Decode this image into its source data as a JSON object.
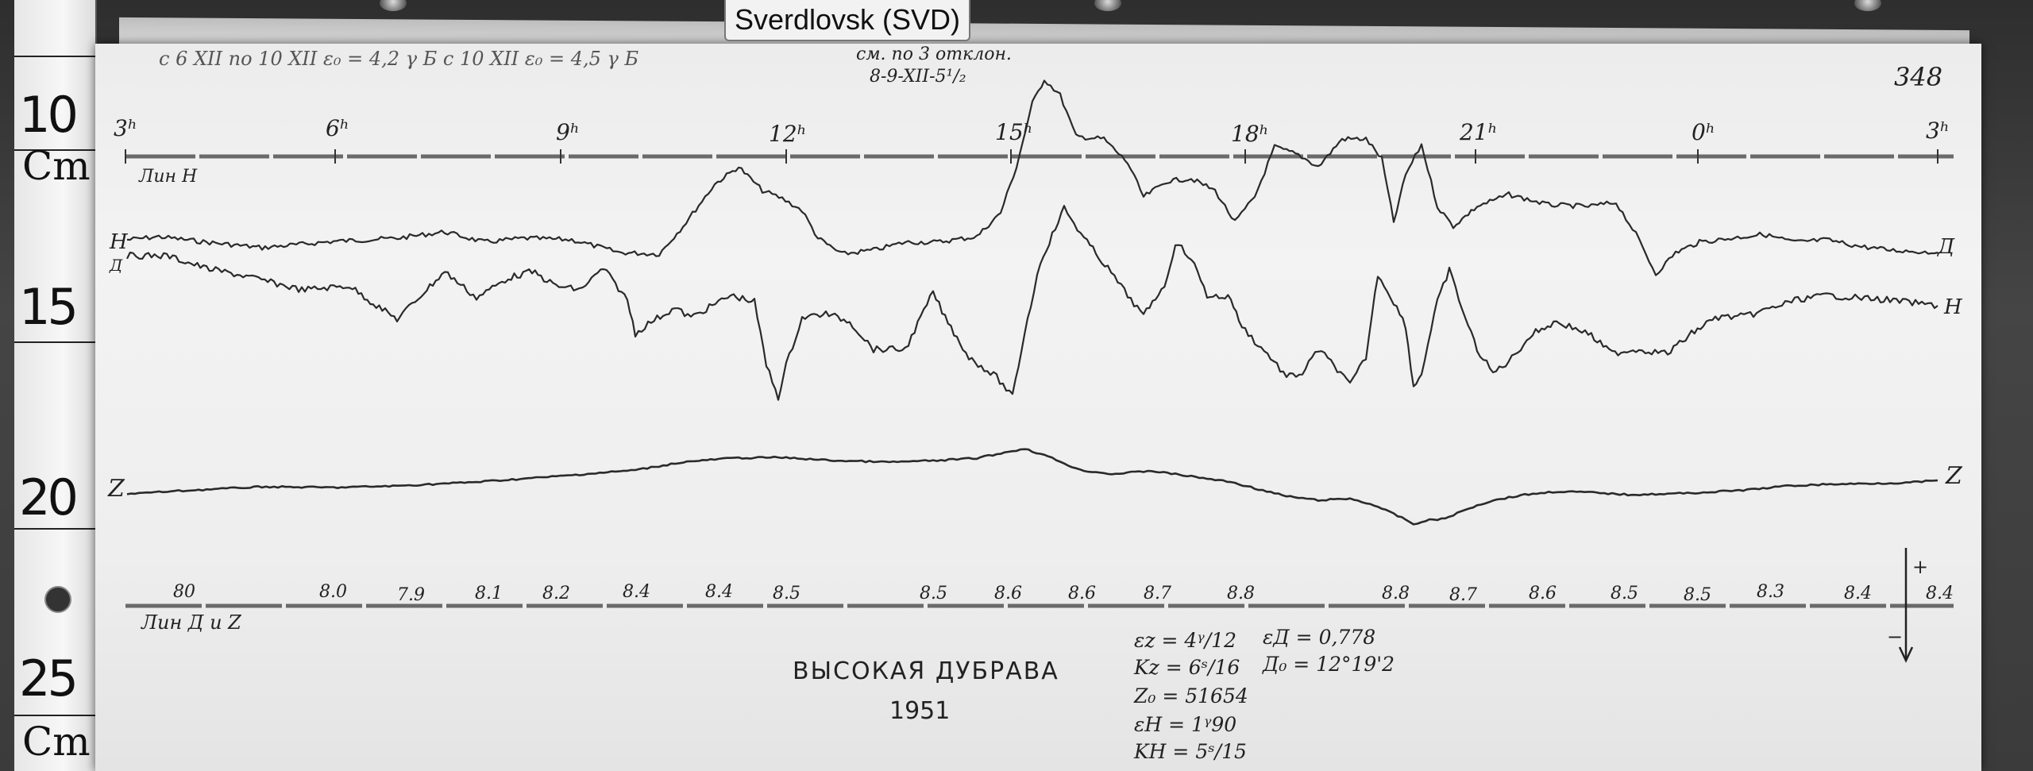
{
  "station": {
    "label": "Sverdlovsk (SVD)"
  },
  "ruler": {
    "numbers": [
      "10",
      "15",
      "20",
      "25"
    ],
    "units": [
      "Cm",
      "Cm"
    ]
  },
  "sheet": {
    "number": "348",
    "header_note": "с 6 XII по 10 XII  ε₀ = 4,2 γ Б   с 10 XII   ε₀ = 4,5 γ Б",
    "header_note2_line1": "см. по 3 отклон.",
    "header_note2_line2": "8-9-XII-5¹/₂",
    "station_name": "ВЫСОКАЯ ДУБРАВА",
    "year": "1951"
  },
  "time_axis": {
    "hour_labels": [
      "3ʰ",
      "6ʰ",
      "9ʰ",
      "12ʰ",
      "15ʰ",
      "18ʰ",
      "21ʰ",
      "0ʰ",
      "3ʰ"
    ]
  },
  "baselines": {
    "top_label": "Лин Н",
    "bottom_label": "Лин Д и Z"
  },
  "trace_labels": {
    "H_left": "H",
    "D_left": "Д",
    "D_right": "Д",
    "H_right": "H",
    "Z_left": "Z",
    "Z_right": "Z"
  },
  "temperatures": [
    "80",
    "8.0",
    "7.9",
    "8.1",
    "8.2",
    "8.4",
    "8.4",
    "8.5",
    "8.5",
    "8.6",
    "8.6",
    "8.7",
    "8.8",
    "8.8",
    "8.7",
    "8.6",
    "8.5",
    "8.5",
    "8.3",
    "8.4",
    "8.4"
  ],
  "constants_left": [
    "εz = 4ᵞ/12",
    "Kz = 6ˢ/16",
    "Z₀ = 51654",
    "εH = 1ᵞ90",
    "KH = 5ˢ/15"
  ],
  "constants_right": [
    "εД = 0,778",
    "Д₀ = 12°19'2"
  ],
  "arrow": {
    "plus": "+",
    "minus": "−"
  },
  "colors": {
    "ink": "#222222",
    "paper": "#efefef",
    "baseline": "#6a6a6a",
    "frame": "#3a3a3a"
  }
}
